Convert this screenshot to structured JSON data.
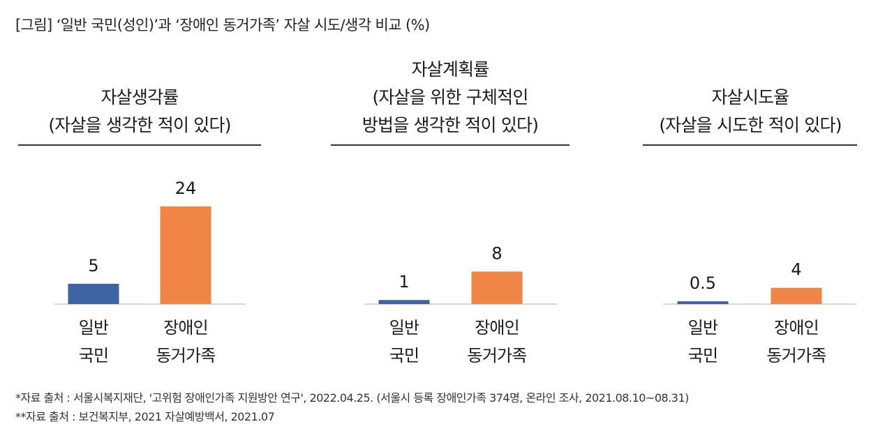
{
  "figure_title": "[그림] ‘일반 국민(성인)’과 ‘장애인 동거가족’ 자살 시도/생각 비교 (%)",
  "colors": {
    "general": "#3f64a3",
    "disabled": "#ef8646",
    "rule": "#333333",
    "axis": "#cccccc"
  },
  "chart_data": [
    {
      "type": "bar",
      "title_lines": [
        "자살생각률",
        "(자살을 생각한 적이 있다)"
      ],
      "categories": [
        [
          "일반",
          "국민"
        ],
        [
          "장애인",
          "동거가족"
        ]
      ],
      "values": [
        5,
        24
      ],
      "value_labels": [
        "5",
        "24"
      ],
      "ylim": [
        0,
        24
      ]
    },
    {
      "type": "bar",
      "title_lines": [
        "자살계획률",
        "(자살을 위한 구체적인",
        "방법을 생각한 적이 있다)"
      ],
      "categories": [
        [
          "일반",
          "국민"
        ],
        [
          "장애인",
          "동거가족"
        ]
      ],
      "values": [
        1,
        8
      ],
      "value_labels": [
        "1",
        "8"
      ],
      "ylim": [
        0,
        24
      ]
    },
    {
      "type": "bar",
      "title_lines": [
        "자살시도율",
        "(자살을 시도한 적이 있다)"
      ],
      "categories": [
        [
          "일반",
          "국민"
        ],
        [
          "장애인",
          "동거가족"
        ]
      ],
      "values": [
        0.5,
        4
      ],
      "value_labels": [
        "0.5",
        "4"
      ],
      "ylim": [
        0,
        24
      ]
    }
  ],
  "footnotes": [
    "*자료 출처 : 서울시복지재단, '고위험 장애인가족 지원방안 연구', 2022.04.25. (서울시 등록 장애인가족 374명, 온라인 조사, 2021.08.10~08.31)",
    "**자료 출처 : 보건복지부, 2021 자살예방백서, 2021.07"
  ]
}
